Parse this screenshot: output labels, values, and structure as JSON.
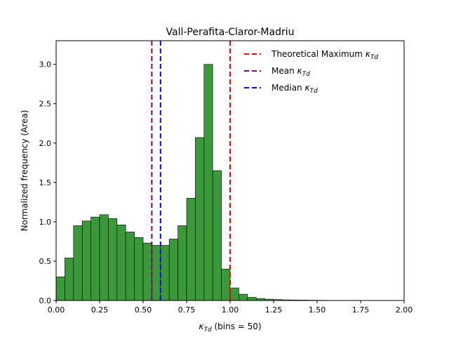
{
  "chart_data": {
    "type": "bar",
    "title": "Vall-Perafita-Claror-Madriu",
    "xlabel": "κ",
    "xlabel_subscript": "Td",
    "xlabel_suffix": " (bins = 50)",
    "ylabel": "Normalized frequency (Area)",
    "xlim": [
      0,
      2.0
    ],
    "ylim": [
      0,
      3.3
    ],
    "xticks": [
      0.0,
      0.25,
      0.5,
      0.75,
      1.0,
      1.25,
      1.5,
      1.75,
      2.0
    ],
    "xtick_labels": [
      "0.00",
      "0.25",
      "0.50",
      "0.75",
      "1.00",
      "1.25",
      "1.50",
      "1.75",
      "2.00"
    ],
    "yticks": [
      0.0,
      0.5,
      1.0,
      1.5,
      2.0,
      2.5,
      3.0
    ],
    "ytick_labels": [
      "0.0",
      "0.5",
      "1.0",
      "1.5",
      "2.0",
      "2.5",
      "3.0"
    ],
    "grid": false,
    "bin_width": 0.05,
    "bin_edges_start": 0.0,
    "values": [
      0.3,
      0.54,
      0.95,
      1.01,
      1.06,
      1.09,
      1.04,
      0.96,
      0.87,
      0.8,
      0.73,
      0.7,
      0.7,
      0.78,
      0.95,
      1.3,
      2.07,
      3.0,
      1.65,
      0.4,
      0.16,
      0.08,
      0.04,
      0.025,
      0.017,
      0.012,
      0.008,
      0.006,
      0.005,
      0.004,
      0.003,
      0.002,
      0.0015
    ],
    "bar_color": "#3a9a3a",
    "bar_edge_color": "#000000",
    "vlines": [
      {
        "name": "Theoretical Maximum",
        "subscript": "Td",
        "x": 1.0,
        "color": "#ff0000"
      },
      {
        "name": "Mean",
        "subscript": "Td",
        "x": 0.55,
        "color": "#800080"
      },
      {
        "name": "Median",
        "subscript": "Td",
        "x": 0.6,
        "color": "#0000ff"
      }
    ],
    "legend_position": "top-right"
  }
}
